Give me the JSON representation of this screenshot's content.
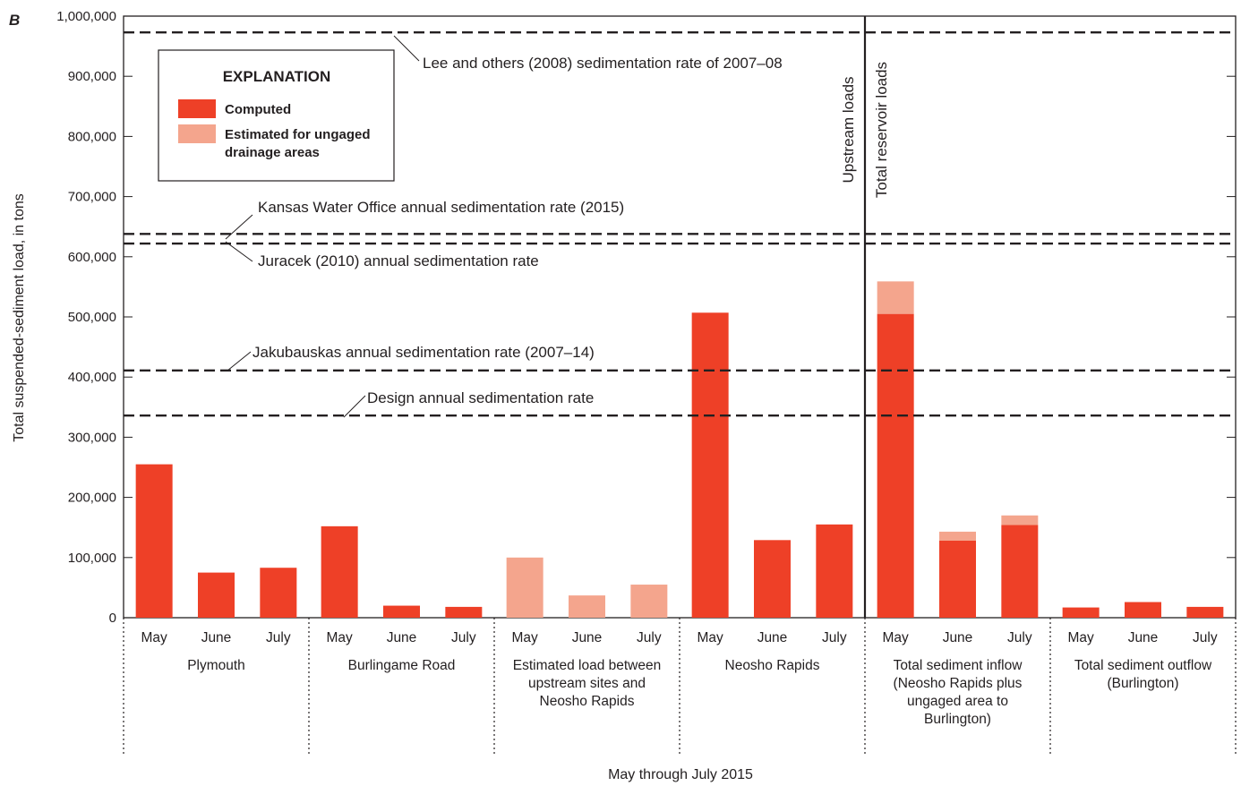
{
  "panel_letter": "B",
  "chart_data": {
    "type": "bar",
    "stacked": true,
    "ylabel": "Total suspended-sediment load, in tons",
    "xlabel": "May through July 2015",
    "ylim": [
      0,
      1000000
    ],
    "yticks": [
      0,
      100000,
      200000,
      300000,
      400000,
      500000,
      600000,
      700000,
      800000,
      900000,
      1000000
    ],
    "ytick_labels": [
      "0",
      "100,000",
      "200,000",
      "300,000",
      "400,000",
      "500,000",
      "600,000",
      "700,000",
      "800,000",
      "900,000",
      "1,000,000"
    ],
    "grid": false,
    "groups": [
      {
        "label_lines": [
          "Plymouth"
        ],
        "months": [
          "May",
          "June",
          "July"
        ],
        "computed": [
          255000,
          75000,
          83000
        ],
        "estimated": [
          0,
          0,
          0
        ]
      },
      {
        "label_lines": [
          "Burlingame Road"
        ],
        "months": [
          "May",
          "June",
          "July"
        ],
        "computed": [
          152000,
          20000,
          18000
        ],
        "estimated": [
          0,
          0,
          0
        ]
      },
      {
        "label_lines": [
          "Estimated load between",
          "upstream sites and",
          "Neosho Rapids"
        ],
        "months": [
          "May",
          "June",
          "July"
        ],
        "computed": [
          0,
          0,
          0
        ],
        "estimated": [
          100000,
          37000,
          55000
        ]
      },
      {
        "label_lines": [
          "Neosho Rapids"
        ],
        "months": [
          "May",
          "June",
          "July"
        ],
        "computed": [
          507000,
          129000,
          155000
        ],
        "estimated": [
          0,
          0,
          0
        ]
      },
      {
        "label_lines": [
          "Total sediment inflow",
          "(Neosho Rapids plus",
          "ungaged area to",
          "Burlington)"
        ],
        "months": [
          "May",
          "June",
          "July"
        ],
        "computed": [
          505000,
          128000,
          154000
        ],
        "estimated": [
          54000,
          15000,
          16000
        ]
      },
      {
        "label_lines": [
          "Total sediment outflow",
          "(Burlington)"
        ],
        "months": [
          "May",
          "June",
          "July"
        ],
        "computed": [
          17000,
          26000,
          18000
        ],
        "estimated": [
          0,
          0,
          0
        ]
      }
    ],
    "series": [
      {
        "name": "Computed",
        "color": "#ee4027"
      },
      {
        "name": "Estimated for ungaged drainage areas",
        "color": "#f4a58d"
      }
    ],
    "reference_lines": [
      {
        "label": "Lee and others (2008) sedimentation rate of 2007–08",
        "value": 973000
      },
      {
        "label": "Kansas Water Office annual sedimentation rate (2015)",
        "value": 638000
      },
      {
        "label": "Juracek (2010) annual sedimentation rate",
        "value": 622000
      },
      {
        "label": "Jakubauskas annual sedimentation rate (2007–14)",
        "value": 411000
      },
      {
        "label": "Design annual sedimentation rate",
        "value": 336000
      }
    ],
    "divider_labels": [
      "Upstream loads",
      "Total reservoir loads"
    ],
    "legend": {
      "title": "EXPLANATION",
      "items": [
        {
          "label_lines": [
            "Computed"
          ],
          "color": "#ee4027"
        },
        {
          "label_lines": [
            "Estimated for ungaged",
            "drainage areas"
          ],
          "color": "#f4a58d"
        }
      ],
      "position": "top-left"
    }
  }
}
